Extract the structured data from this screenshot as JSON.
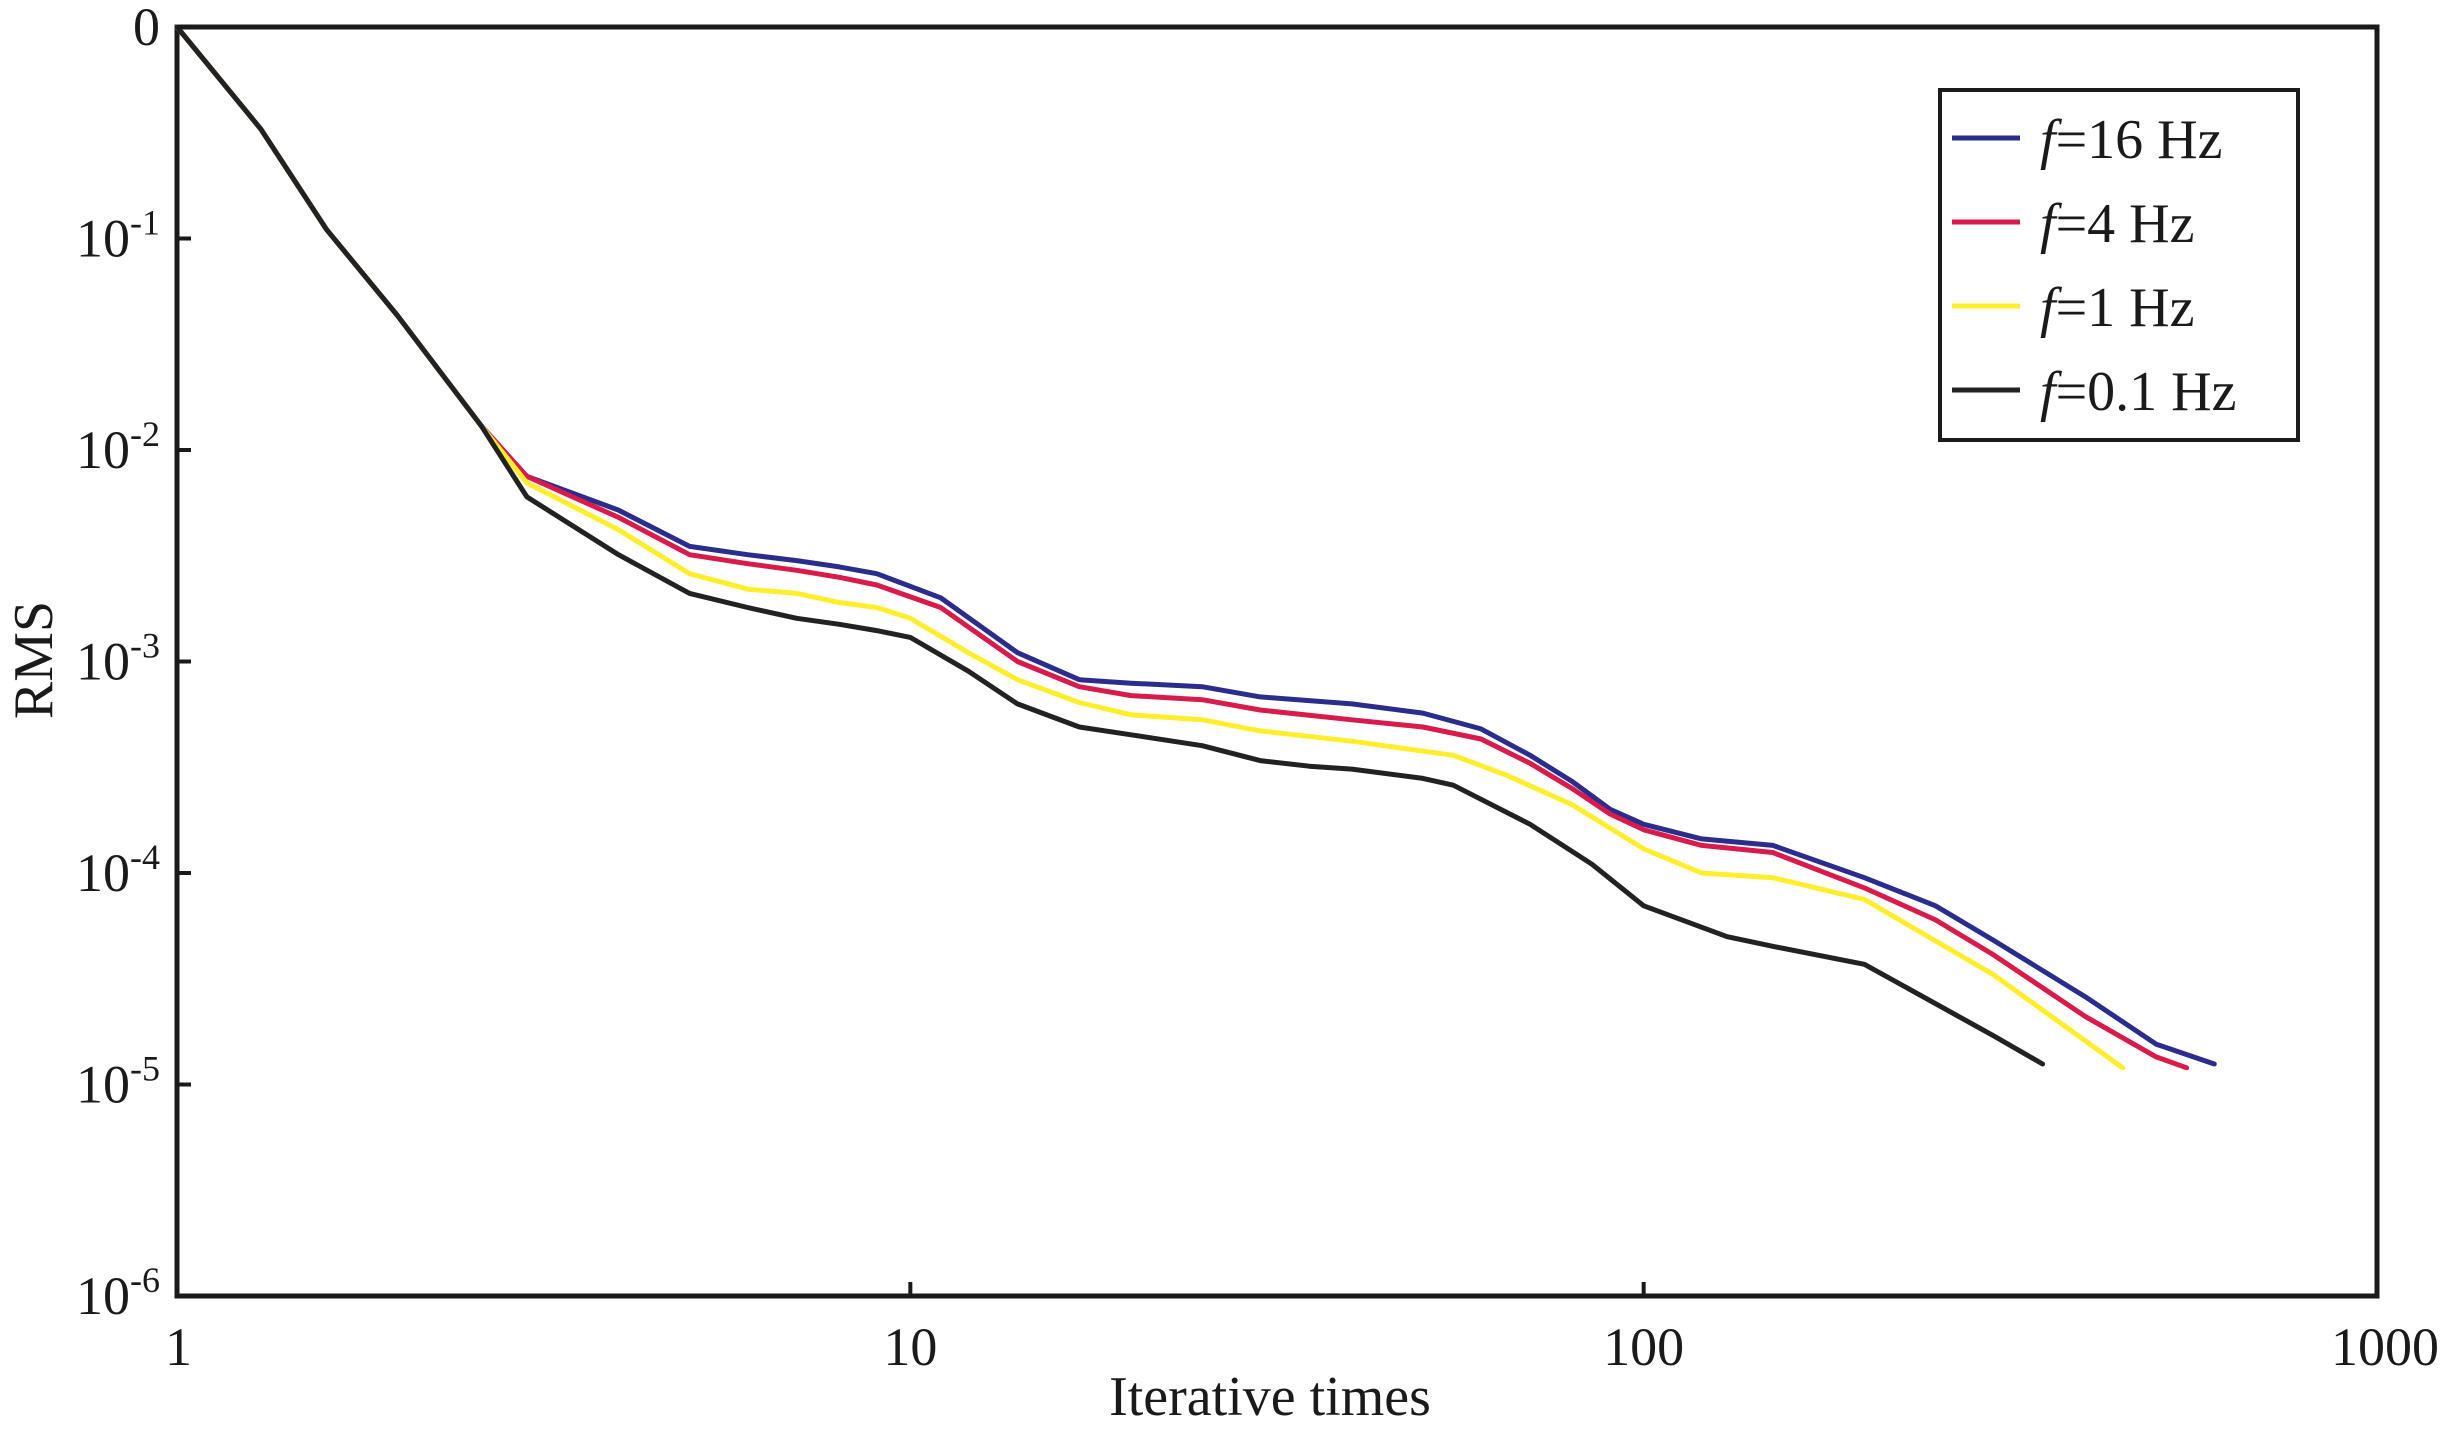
{
  "chart_data": {
    "type": "line",
    "xlabel": "Iterative times",
    "ylabel": "RMS",
    "x_scale": "log",
    "y_scale": "log",
    "xlim": [
      1,
      1000
    ],
    "ylim": [
      1e-06,
      1
    ],
    "x_ticks": [
      {
        "value": 1,
        "label": "1"
      },
      {
        "value": 10,
        "label": "10"
      },
      {
        "value": 100,
        "label": "100"
      },
      {
        "value": 1000,
        "label": "1000"
      }
    ],
    "y_ticks": [
      {
        "value": 1,
        "base": "0",
        "exp": ""
      },
      {
        "value": 0.1,
        "base": "10",
        "exp": "-1"
      },
      {
        "value": 0.01,
        "base": "10",
        "exp": "-2"
      },
      {
        "value": 0.001,
        "base": "10",
        "exp": "-3"
      },
      {
        "value": 0.0001,
        "base": "10",
        "exp": "-4"
      },
      {
        "value": 1e-05,
        "base": "10",
        "exp": "-5"
      },
      {
        "value": 1e-06,
        "base": "10",
        "exp": "-6"
      }
    ],
    "grid": false,
    "legend_position": "top-right",
    "series": [
      {
        "name": "=16 Hz",
        "symbol": "f",
        "color": "#2a2d8c",
        "points": [
          [
            1,
            1
          ],
          [
            1.3,
            0.33
          ],
          [
            1.6,
            0.11
          ],
          [
            2,
            0.043
          ],
          [
            2.6,
            0.013
          ],
          [
            3,
            0.0075
          ],
          [
            4,
            0.0052
          ],
          [
            5,
            0.0035
          ],
          [
            6,
            0.0032
          ],
          [
            7,
            0.003
          ],
          [
            8,
            0.0028
          ],
          [
            9,
            0.0026
          ],
          [
            11,
            0.002
          ],
          [
            14,
            0.0011
          ],
          [
            17,
            0.00082
          ],
          [
            20,
            0.00079
          ],
          [
            25,
            0.00076
          ],
          [
            30,
            0.00068
          ],
          [
            40,
            0.00063
          ],
          [
            50,
            0.00057
          ],
          [
            60,
            0.00048
          ],
          [
            70,
            0.00036
          ],
          [
            80,
            0.00027
          ],
          [
            90,
            0.0002
          ],
          [
            100,
            0.00017
          ],
          [
            120,
            0.000145
          ],
          [
            150,
            0.000135
          ],
          [
            200,
            9.5e-05
          ],
          [
            250,
            7e-05
          ],
          [
            300,
            4.8e-05
          ],
          [
            400,
            2.6e-05
          ],
          [
            500,
            1.55e-05
          ],
          [
            600,
            1.25e-05
          ]
        ]
      },
      {
        "name": "=4 Hz",
        "symbol": "f",
        "color": "#d81b4a",
        "points": [
          [
            1,
            1
          ],
          [
            1.3,
            0.33
          ],
          [
            1.6,
            0.11
          ],
          [
            2,
            0.043
          ],
          [
            2.6,
            0.013
          ],
          [
            3,
            0.0075
          ],
          [
            4,
            0.0048
          ],
          [
            5,
            0.0032
          ],
          [
            6,
            0.0029
          ],
          [
            7,
            0.0027
          ],
          [
            8,
            0.0025
          ],
          [
            9,
            0.0023
          ],
          [
            11,
            0.0018
          ],
          [
            14,
            0.001
          ],
          [
            17,
            0.00076
          ],
          [
            20,
            0.00069
          ],
          [
            25,
            0.00066
          ],
          [
            30,
            0.00059
          ],
          [
            40,
            0.00053
          ],
          [
            50,
            0.00049
          ],
          [
            60,
            0.00043
          ],
          [
            70,
            0.00033
          ],
          [
            80,
            0.00025
          ],
          [
            90,
            0.00019
          ],
          [
            100,
            0.00016
          ],
          [
            120,
            0.000135
          ],
          [
            150,
            0.000125
          ],
          [
            200,
            8.5e-05
          ],
          [
            250,
            6e-05
          ],
          [
            300,
            4.1e-05
          ],
          [
            400,
            2.1e-05
          ],
          [
            500,
            1.35e-05
          ],
          [
            550,
            1.2e-05
          ]
        ]
      },
      {
        "name": "=1 Hz",
        "symbol": "f",
        "color": "#ffee2b",
        "points": [
          [
            1,
            1
          ],
          [
            1.3,
            0.33
          ],
          [
            1.6,
            0.11
          ],
          [
            2,
            0.043
          ],
          [
            2.6,
            0.013
          ],
          [
            3,
            0.007
          ],
          [
            4,
            0.0042
          ],
          [
            5,
            0.0026
          ],
          [
            6,
            0.0022
          ],
          [
            7,
            0.0021
          ],
          [
            8,
            0.0019
          ],
          [
            9,
            0.0018
          ],
          [
            10,
            0.0016
          ],
          [
            12,
            0.0011
          ],
          [
            14,
            0.00082
          ],
          [
            17,
            0.00064
          ],
          [
            20,
            0.00056
          ],
          [
            25,
            0.00053
          ],
          [
            30,
            0.00047
          ],
          [
            40,
            0.00042
          ],
          [
            55,
            0.00036
          ],
          [
            65,
            0.00029
          ],
          [
            80,
            0.00021
          ],
          [
            100,
            0.00013
          ],
          [
            120,
            0.0001
          ],
          [
            150,
            9.5e-05
          ],
          [
            200,
            7.5e-05
          ],
          [
            300,
            3.3e-05
          ],
          [
            450,
            1.2e-05
          ]
        ]
      },
      {
        "name": "=0.1 Hz",
        "symbol": "f",
        "color": "#222222",
        "points": [
          [
            1,
            1
          ],
          [
            1.3,
            0.33
          ],
          [
            1.6,
            0.11
          ],
          [
            2,
            0.043
          ],
          [
            2.6,
            0.013
          ],
          [
            3,
            0.006
          ],
          [
            4,
            0.0032
          ],
          [
            5,
            0.0021
          ],
          [
            6,
            0.0018
          ],
          [
            7,
            0.0016
          ],
          [
            8,
            0.0015
          ],
          [
            9,
            0.0014
          ],
          [
            10,
            0.0013
          ],
          [
            12,
            0.0009
          ],
          [
            14,
            0.00063
          ],
          [
            17,
            0.00049
          ],
          [
            20,
            0.00045
          ],
          [
            25,
            0.0004
          ],
          [
            30,
            0.00034
          ],
          [
            35,
            0.00032
          ],
          [
            40,
            0.00031
          ],
          [
            50,
            0.00028
          ],
          [
            55,
            0.00026
          ],
          [
            70,
            0.00017
          ],
          [
            85,
            0.00011
          ],
          [
            100,
            7e-05
          ],
          [
            130,
            5e-05
          ],
          [
            150,
            4.5e-05
          ],
          [
            200,
            3.7e-05
          ],
          [
            300,
            1.7e-05
          ],
          [
            350,
            1.25e-05
          ]
        ]
      }
    ]
  }
}
